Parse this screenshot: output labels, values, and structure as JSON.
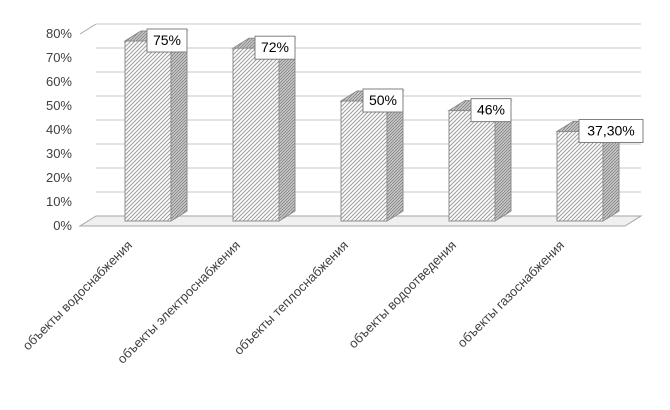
{
  "chart_data": {
    "type": "bar",
    "effect": "3d",
    "title": "",
    "xlabel": "",
    "ylabel": "",
    "categories": [
      "объекты водоснабжения",
      "объекты электроснабжения",
      "объекты теплоснабжения",
      "объекты водоотведения",
      "объекты газоснабжения"
    ],
    "values": [
      75,
      72,
      50,
      46,
      37.3
    ],
    "data_labels": [
      "75%",
      "72%",
      "50%",
      "46%",
      "37,30%"
    ],
    "y_ticks": [
      "0%",
      "10%",
      "20%",
      "30%",
      "40%",
      "50%",
      "60%",
      "70%",
      "80%"
    ],
    "ylim": [
      0,
      80
    ],
    "y_step": 10,
    "grid": true,
    "legend": false,
    "bar_style": "diagonal-hatch",
    "colors": {
      "hatch_line_light": "#9c9c9c",
      "hatch_bg_light": "#ffffff",
      "hatch_line_dark": "#858585",
      "hatch_bg_dark": "#d6d6d6",
      "bar_outline": "#8c8c8c",
      "grid_line": "#c9c9c9",
      "wall_edge": "#a6a6a6",
      "floor_fill": "#f0f0f0",
      "axis_text": "#404040",
      "data_label_text": "#000000",
      "data_label_border": "#7f7f7f",
      "data_label_bg": "#ffffff"
    }
  }
}
